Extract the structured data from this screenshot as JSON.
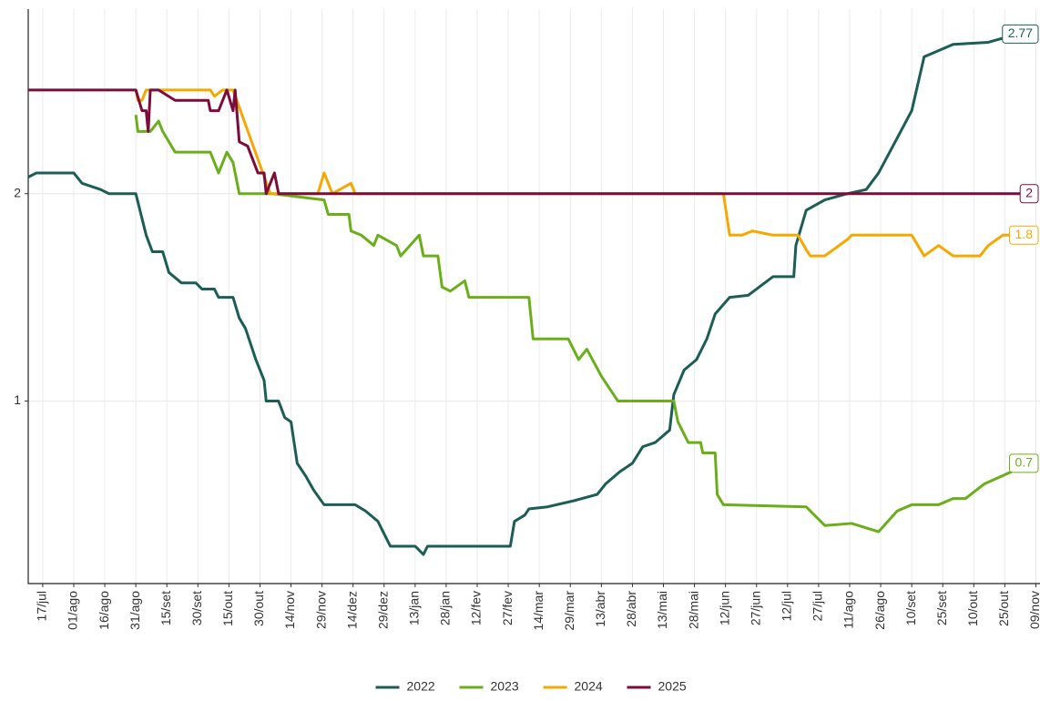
{
  "chart_data": {
    "type": "line",
    "xlim": [
      -7,
      482
    ],
    "ylim": [
      0.12,
      2.89
    ],
    "yticks": [
      1,
      2
    ],
    "grid": true,
    "legend": "bottom",
    "xticks": [
      {
        "value": 0,
        "label": "17/jul"
      },
      {
        "value": 15,
        "label": "01/ago"
      },
      {
        "value": 30,
        "label": "16/ago"
      },
      {
        "value": 45,
        "label": "31/ago"
      },
      {
        "value": 60,
        "label": "15/set"
      },
      {
        "value": 75,
        "label": "30/set"
      },
      {
        "value": 90,
        "label": "15/out"
      },
      {
        "value": 105,
        "label": "30/out"
      },
      {
        "value": 120,
        "label": "14/nov"
      },
      {
        "value": 135,
        "label": "29/nov"
      },
      {
        "value": 150,
        "label": "14/dez"
      },
      {
        "value": 165,
        "label": "29/dez"
      },
      {
        "value": 180,
        "label": "13/jan"
      },
      {
        "value": 195,
        "label": "28/jan"
      },
      {
        "value": 210,
        "label": "12/fev"
      },
      {
        "value": 225,
        "label": "27/fev"
      },
      {
        "value": 240,
        "label": "14/mar"
      },
      {
        "value": 255,
        "label": "29/mar"
      },
      {
        "value": 270,
        "label": "13/abr"
      },
      {
        "value": 285,
        "label": "28/abr"
      },
      {
        "value": 300,
        "label": "13/mai"
      },
      {
        "value": 315,
        "label": "28/mai"
      },
      {
        "value": 330,
        "label": "12/jun"
      },
      {
        "value": 345,
        "label": "27/jun"
      },
      {
        "value": 360,
        "label": "12/jul"
      },
      {
        "value": 375,
        "label": "27/jul"
      },
      {
        "value": 390,
        "label": "11/ago"
      },
      {
        "value": 405,
        "label": "26/ago"
      },
      {
        "value": 420,
        "label": "10/set"
      },
      {
        "value": 435,
        "label": "25/set"
      },
      {
        "value": 450,
        "label": "10/out"
      },
      {
        "value": 465,
        "label": "25/out"
      },
      {
        "value": 480,
        "label": "09/nov"
      }
    ],
    "series": [
      {
        "name": "2022",
        "color": "#1b5e55",
        "x": [
          -7,
          -3,
          15,
          19,
          28,
          32,
          45,
          48,
          50,
          53,
          58,
          61,
          67,
          74,
          77,
          83,
          85,
          92,
          95,
          98,
          103,
          107,
          108,
          114,
          117,
          120,
          123,
          127,
          131,
          136,
          151,
          156,
          162,
          164,
          168,
          173,
          180,
          184,
          186,
          226,
          228,
          233,
          235,
          244,
          257,
          268,
          272,
          279,
          285,
          290,
          296,
          303,
          305,
          310,
          316,
          321,
          325,
          332,
          341,
          353,
          363,
          364,
          369,
          378,
          389,
          398,
          404,
          420,
          426,
          440,
          457,
          464,
          481
        ],
        "values": [
          2.08,
          2.1,
          2.1,
          2.05,
          2.02,
          2.0,
          2.0,
          1.88,
          1.8,
          1.72,
          1.72,
          1.62,
          1.57,
          1.57,
          1.54,
          1.54,
          1.5,
          1.5,
          1.4,
          1.35,
          1.2,
          1.1,
          1.0,
          1.0,
          0.92,
          0.9,
          0.7,
          0.64,
          0.57,
          0.5,
          0.5,
          0.47,
          0.42,
          0.38,
          0.3,
          0.3,
          0.3,
          0.26,
          0.3,
          0.3,
          0.42,
          0.45,
          0.48,
          0.49,
          0.52,
          0.55,
          0.6,
          0.66,
          0.7,
          0.78,
          0.8,
          0.86,
          1.03,
          1.15,
          1.2,
          1.3,
          1.42,
          1.5,
          1.51,
          1.6,
          1.6,
          1.75,
          1.92,
          1.97,
          2.0,
          2.02,
          2.1,
          2.4,
          2.66,
          2.72,
          2.73,
          2.75,
          2.77
        ]
      },
      {
        "name": "2023",
        "color": "#6aaf1a",
        "x": [
          45,
          46,
          52,
          56,
          58,
          64,
          81,
          85,
          89,
          92,
          95,
          111,
          136,
          138,
          148,
          149,
          154,
          160,
          162,
          171,
          173,
          182,
          184,
          191,
          193,
          197,
          204,
          206,
          235,
          237,
          254,
          259,
          263,
          270,
          278,
          305,
          307,
          312,
          318,
          319,
          325,
          326,
          329,
          369,
          378,
          391,
          404,
          413,
          420,
          433,
          440,
          446,
          455,
          464,
          477,
          481
        ],
        "values": [
          2.38,
          2.3,
          2.3,
          2.35,
          2.3,
          2.2,
          2.2,
          2.1,
          2.2,
          2.15,
          2.0,
          2.0,
          1.97,
          1.9,
          1.9,
          1.82,
          1.8,
          1.75,
          1.8,
          1.75,
          1.7,
          1.8,
          1.7,
          1.7,
          1.55,
          1.53,
          1.58,
          1.5,
          1.5,
          1.3,
          1.3,
          1.2,
          1.25,
          1.12,
          1.0,
          1.0,
          0.9,
          0.8,
          0.8,
          0.75,
          0.75,
          0.55,
          0.5,
          0.49,
          0.4,
          0.41,
          0.37,
          0.47,
          0.5,
          0.5,
          0.53,
          0.53,
          0.6,
          0.64,
          0.7,
          0.7
        ]
      },
      {
        "name": "2024",
        "color": "#f5a800",
        "x": [
          45,
          46,
          48,
          50,
          81,
          83,
          87,
          92,
          110,
          133,
          136,
          140,
          149,
          151,
          329,
          332,
          338,
          343,
          353,
          365,
          369,
          371,
          378,
          389,
          391,
          420,
          426,
          433,
          440,
          453,
          457,
          464,
          481
        ],
        "values": [
          2.5,
          2.45,
          2.45,
          2.5,
          2.5,
          2.47,
          2.5,
          2.5,
          2.0,
          2.0,
          2.1,
          2.0,
          2.05,
          2.0,
          2.0,
          1.8,
          1.8,
          1.82,
          1.8,
          1.8,
          1.73,
          1.7,
          1.7,
          1.78,
          1.8,
          1.8,
          1.7,
          1.75,
          1.7,
          1.7,
          1.75,
          1.8,
          1.8
        ]
      },
      {
        "name": "2025",
        "color": "#7b0c3b",
        "x": [
          -7,
          45,
          48,
          50,
          51,
          52,
          56,
          64,
          80,
          81,
          85,
          87,
          89,
          92,
          93,
          95,
          99,
          104,
          107,
          108,
          110,
          112,
          114,
          481
        ],
        "values": [
          2.5,
          2.5,
          2.4,
          2.4,
          2.3,
          2.5,
          2.5,
          2.45,
          2.45,
          2.4,
          2.4,
          2.45,
          2.5,
          2.4,
          2.5,
          2.25,
          2.23,
          2.1,
          2.1,
          2.0,
          2.05,
          2.1,
          2.0,
          2.0
        ]
      }
    ]
  }
}
